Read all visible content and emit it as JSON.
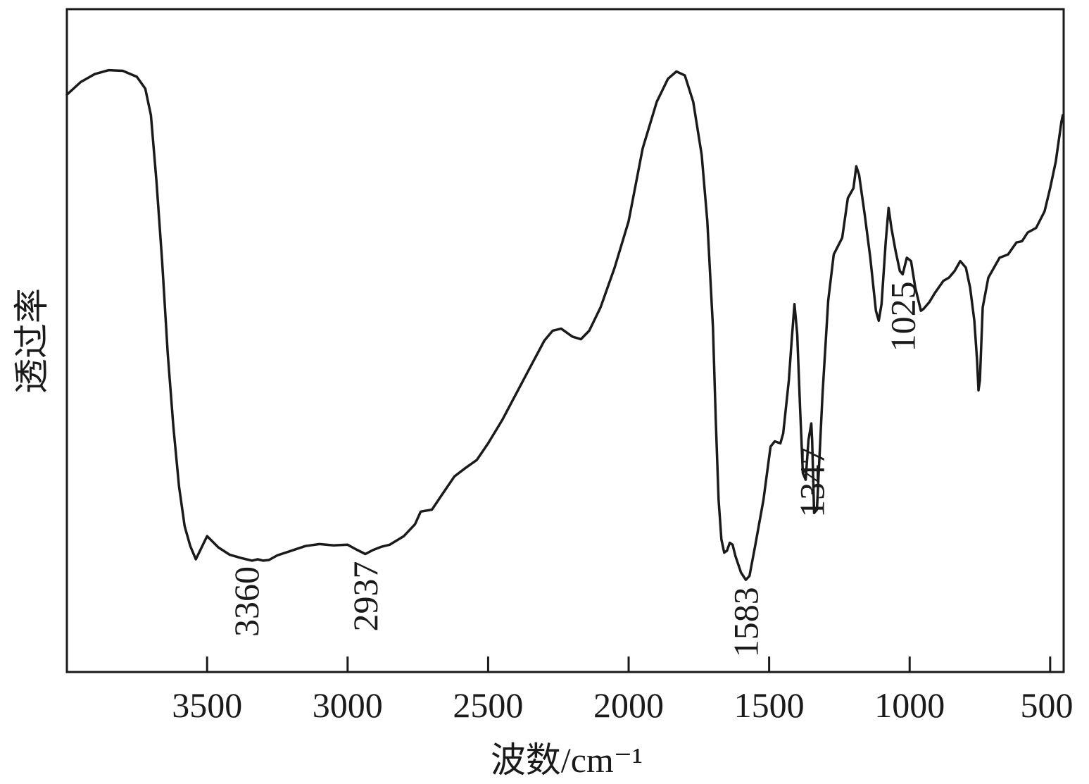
{
  "chart_data": {
    "type": "line",
    "xlabel": "波数/cm⁻¹",
    "ylabel": "透过率",
    "xlim": [
      3999,
      452
    ],
    "ylim": [
      0,
      100
    ],
    "x_ticks": [
      3500,
      3000,
      2500,
      2000,
      1500,
      1000,
      500
    ],
    "x_tick_labels": [
      "3500",
      "3000",
      "2500",
      "2000",
      "1500",
      "1000",
      "500"
    ],
    "y_ticks_shown": false,
    "grid": false,
    "line_color": "#1a1a1a",
    "series": [
      {
        "points": [
          [
            3999,
            87.1
          ],
          [
            3950,
            89.0
          ],
          [
            3900,
            90.2
          ],
          [
            3850,
            90.8
          ],
          [
            3800,
            90.7
          ],
          [
            3750,
            89.8
          ],
          [
            3720,
            88.0
          ],
          [
            3700,
            84.0
          ],
          [
            3680,
            74.0
          ],
          [
            3660,
            62.0
          ],
          [
            3640,
            48.0
          ],
          [
            3620,
            37.0
          ],
          [
            3600,
            28.0
          ],
          [
            3580,
            22.0
          ],
          [
            3560,
            19.0
          ],
          [
            3540,
            17.0
          ],
          [
            3500,
            20.5
          ],
          [
            3460,
            18.8
          ],
          [
            3420,
            17.7
          ],
          [
            3380,
            17.2
          ],
          [
            3360,
            17.0
          ],
          [
            3340,
            16.8
          ],
          [
            3320,
            17.0
          ],
          [
            3300,
            16.8
          ],
          [
            3280,
            16.9
          ],
          [
            3250,
            17.6
          ],
          [
            3200,
            18.3
          ],
          [
            3150,
            19.0
          ],
          [
            3100,
            19.3
          ],
          [
            3050,
            19.1
          ],
          [
            3000,
            19.2
          ],
          [
            2970,
            18.5
          ],
          [
            2937,
            17.8
          ],
          [
            2910,
            18.4
          ],
          [
            2880,
            18.9
          ],
          [
            2850,
            19.2
          ],
          [
            2800,
            20.5
          ],
          [
            2760,
            22.3
          ],
          [
            2740,
            24.2
          ],
          [
            2700,
            24.5
          ],
          [
            2660,
            27.0
          ],
          [
            2620,
            29.5
          ],
          [
            2580,
            30.8
          ],
          [
            2540,
            32.0
          ],
          [
            2500,
            34.5
          ],
          [
            2450,
            38.0
          ],
          [
            2400,
            42.0
          ],
          [
            2350,
            46.0
          ],
          [
            2300,
            50.0
          ],
          [
            2270,
            51.5
          ],
          [
            2240,
            51.8
          ],
          [
            2200,
            50.6
          ],
          [
            2170,
            50.2
          ],
          [
            2140,
            51.5
          ],
          [
            2100,
            55.0
          ],
          [
            2050,
            61.0
          ],
          [
            2000,
            68.0
          ],
          [
            1950,
            79.0
          ],
          [
            1900,
            86.0
          ],
          [
            1860,
            89.5
          ],
          [
            1830,
            90.6
          ],
          [
            1800,
            90.0
          ],
          [
            1770,
            86.0
          ],
          [
            1740,
            78.0
          ],
          [
            1720,
            68.0
          ],
          [
            1700,
            52.0
          ],
          [
            1690,
            38.0
          ],
          [
            1680,
            26.0
          ],
          [
            1670,
            20.0
          ],
          [
            1660,
            18.0
          ],
          [
            1650,
            18.3
          ],
          [
            1640,
            19.5
          ],
          [
            1630,
            19.2
          ],
          [
            1620,
            17.5
          ],
          [
            1600,
            15.0
          ],
          [
            1583,
            13.9
          ],
          [
            1570,
            14.5
          ],
          [
            1550,
            19.0
          ],
          [
            1520,
            26.0
          ],
          [
            1495,
            34.0
          ],
          [
            1480,
            34.8
          ],
          [
            1460,
            34.5
          ],
          [
            1450,
            36.0
          ],
          [
            1430,
            44.0
          ],
          [
            1420,
            50.0
          ],
          [
            1410,
            55.5
          ],
          [
            1400,
            51.0
          ],
          [
            1390,
            40.0
          ],
          [
            1380,
            30.0
          ],
          [
            1370,
            29.0
          ],
          [
            1360,
            35.0
          ],
          [
            1350,
            37.5
          ],
          [
            1347,
            35.0
          ],
          [
            1340,
            24.0
          ],
          [
            1330,
            24.5
          ],
          [
            1310,
            42.0
          ],
          [
            1290,
            56.0
          ],
          [
            1270,
            63.0
          ],
          [
            1240,
            65.5
          ],
          [
            1220,
            71.5
          ],
          [
            1200,
            73.0
          ],
          [
            1190,
            76.3
          ],
          [
            1180,
            75.0
          ],
          [
            1160,
            69.0
          ],
          [
            1140,
            62.5
          ],
          [
            1120,
            54.5
          ],
          [
            1110,
            53.0
          ],
          [
            1100,
            55.5
          ],
          [
            1085,
            65.0
          ],
          [
            1075,
            70.0
          ],
          [
            1065,
            67.0
          ],
          [
            1050,
            63.5
          ],
          [
            1035,
            60.5
          ],
          [
            1025,
            60.0
          ],
          [
            1010,
            62.5
          ],
          [
            995,
            62.0
          ],
          [
            980,
            58.0
          ],
          [
            960,
            54.5
          ],
          [
            950,
            54.8
          ],
          [
            930,
            55.8
          ],
          [
            910,
            57.2
          ],
          [
            880,
            59.0
          ],
          [
            860,
            59.5
          ],
          [
            840,
            60.5
          ],
          [
            820,
            62.0
          ],
          [
            800,
            61.0
          ],
          [
            785,
            58.0
          ],
          [
            770,
            53.0
          ],
          [
            760,
            47.0
          ],
          [
            755,
            42.5
          ],
          [
            750,
            44.0
          ],
          [
            740,
            55.0
          ],
          [
            720,
            59.5
          ],
          [
            700,
            61.0
          ],
          [
            680,
            62.5
          ],
          [
            650,
            63.0
          ],
          [
            620,
            64.8
          ],
          [
            600,
            65.0
          ],
          [
            580,
            66.3
          ],
          [
            550,
            67.0
          ],
          [
            520,
            69.5
          ],
          [
            500,
            73.0
          ],
          [
            480,
            77.0
          ],
          [
            470,
            80.0
          ],
          [
            460,
            83.0
          ],
          [
            455,
            84.0
          ]
        ]
      }
    ],
    "annotations": [
      {
        "x": 3360,
        "label": "3360"
      },
      {
        "x": 2937,
        "label": "2937"
      },
      {
        "x": 1583,
        "label": "1583"
      },
      {
        "x": 1347,
        "label": "1347"
      },
      {
        "x": 1025,
        "label": "1025"
      }
    ]
  }
}
